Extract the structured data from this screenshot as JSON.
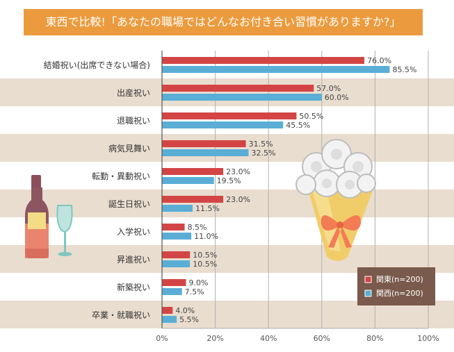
{
  "title": "東西で比較!「あなたの職場ではどんなお付き合い習慣がありますか?」",
  "chart_data": {
    "type": "bar",
    "orientation": "horizontal",
    "categories": [
      "結婚祝い(出席できない場合)",
      "出産祝い",
      "退職祝い",
      "病気見舞い",
      "転勤・異動祝い",
      "誕生日祝い",
      "入学祝い",
      "昇進祝い",
      "新築祝い",
      "卒業・就職祝い"
    ],
    "series": [
      {
        "name": "関東(n=200)",
        "color": "#d34545",
        "values": [
          76.0,
          57.0,
          50.5,
          31.5,
          23.0,
          23.0,
          8.5,
          10.5,
          9.0,
          4.0
        ]
      },
      {
        "name": "関西(n=200)",
        "color": "#5aaed6",
        "values": [
          85.5,
          60.0,
          45.5,
          32.5,
          19.5,
          11.5,
          11.0,
          10.5,
          7.5,
          5.5
        ]
      }
    ],
    "value_labels": [
      [
        "76.0%",
        "57.0%",
        "50.5%",
        "31.5%",
        "23.0%",
        "23.0%",
        "8.5%",
        "10.5%",
        "9.0%",
        "4.0%"
      ],
      [
        "85.5%",
        "60.0%",
        "45.5%",
        "32.5%",
        "19.5%",
        "11.5%",
        "11.0%",
        "10.5%",
        "7.5%",
        "5.5%"
      ]
    ],
    "xlim": [
      0,
      100
    ],
    "xticks": [
      0,
      20,
      40,
      60,
      80,
      100
    ],
    "xtick_labels": [
      "0%",
      "20%",
      "40%",
      "60%",
      "80%",
      "100%"
    ],
    "grid": true,
    "legend_position": "bottom-right",
    "stripe_color": "#e9ddcf"
  }
}
